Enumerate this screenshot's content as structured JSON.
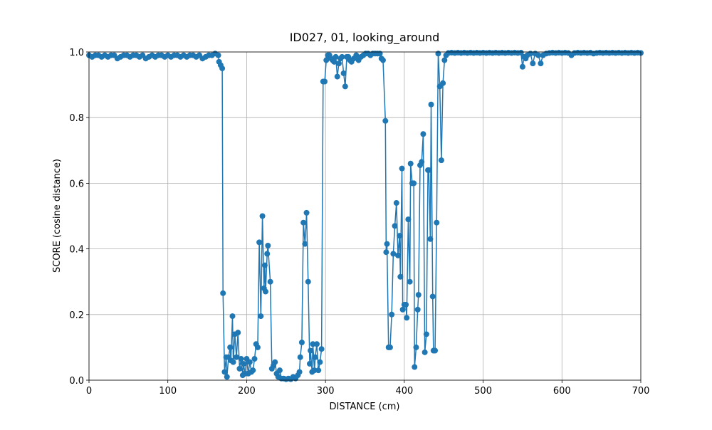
{
  "chart_data": {
    "type": "line",
    "title": "ID027, 01, looking_around",
    "x_label": "DISTANCE (cm)",
    "y_label": "SCORE (cosine distance)",
    "color": "#1f77b4",
    "grid": true,
    "xlim": [
      0,
      700
    ],
    "ylim": [
      0,
      1
    ],
    "xticks": [
      0,
      100,
      200,
      300,
      400,
      500,
      600,
      700
    ],
    "yticks": [
      {
        "value": 0,
        "label": "0.0"
      },
      0.2,
      0.4,
      0.6,
      0.8,
      {
        "value": 1,
        "label": "1.0"
      }
    ],
    "x": [
      0,
      4,
      8,
      12,
      16,
      20,
      24,
      28,
      32,
      36,
      40,
      44,
      48,
      52,
      56,
      60,
      64,
      68,
      72,
      76,
      80,
      84,
      88,
      92,
      96,
      100,
      104,
      108,
      112,
      116,
      120,
      124,
      128,
      132,
      136,
      140,
      144,
      148,
      152,
      156,
      160,
      164,
      165,
      167,
      169,
      170,
      172,
      174,
      175,
      177,
      179,
      180,
      182,
      183,
      185,
      187,
      189,
      191,
      193,
      195,
      196,
      198,
      200,
      202,
      204,
      206,
      208,
      210,
      212,
      214,
      216,
      218,
      220,
      222,
      223,
      224,
      226,
      227,
      230,
      232,
      234,
      236,
      238,
      240,
      242,
      244,
      247,
      250,
      253,
      256,
      259,
      262,
      265,
      267,
      268,
      270,
      272,
      274,
      276,
      278,
      280,
      281,
      283,
      284,
      286,
      287,
      289,
      291,
      293,
      295,
      297,
      299,
      301,
      303,
      305,
      307,
      309,
      311,
      313,
      315,
      317,
      319,
      321,
      323,
      325,
      327,
      329,
      331,
      333,
      336,
      339,
      342,
      345,
      348,
      351,
      354,
      357,
      360,
      363,
      366,
      369,
      371,
      373,
      376,
      377,
      378,
      380,
      382,
      384,
      386,
      388,
      390,
      392,
      394,
      395,
      397,
      398,
      400,
      402,
      403,
      405,
      407,
      408,
      410,
      412,
      413,
      415,
      417,
      418,
      420,
      422,
      424,
      426,
      428,
      430,
      431,
      433,
      434,
      436,
      437,
      439,
      441,
      443,
      445,
      447,
      449,
      451,
      453,
      456,
      460,
      464,
      468,
      472,
      476,
      480,
      484,
      488,
      492,
      496,
      500,
      504,
      508,
      512,
      516,
      520,
      524,
      528,
      532,
      536,
      540,
      544,
      548,
      550,
      552,
      554,
      556,
      560,
      563,
      566,
      570,
      573,
      576,
      580,
      584,
      588,
      592,
      596,
      600,
      604,
      608,
      612,
      616,
      620,
      624,
      628,
      632,
      636,
      640,
      644,
      648,
      652,
      656,
      660,
      664,
      668,
      672,
      676,
      680,
      684,
      688,
      692,
      696,
      700
    ],
    "values": [
      0.99,
      0.985,
      0.99,
      0.99,
      0.985,
      0.99,
      0.985,
      0.99,
      0.99,
      0.98,
      0.985,
      0.99,
      0.99,
      0.985,
      0.99,
      0.99,
      0.985,
      0.99,
      0.98,
      0.985,
      0.99,
      0.985,
      0.99,
      0.99,
      0.985,
      0.99,
      0.985,
      0.99,
      0.99,
      0.985,
      0.99,
      0.985,
      0.99,
      0.99,
      0.985,
      0.99,
      0.98,
      0.985,
      0.99,
      0.99,
      0.995,
      0.99,
      0.97,
      0.96,
      0.95,
      0.265,
      0.025,
      0.07,
      0.01,
      0.07,
      0.1,
      0.06,
      0.195,
      0.055,
      0.14,
      0.07,
      0.145,
      0.035,
      0.065,
      0.015,
      0.05,
      0.02,
      0.065,
      0.02,
      0.055,
      0.025,
      0.03,
      0.065,
      0.11,
      0.1,
      0.42,
      0.195,
      0.5,
      0.28,
      0.35,
      0.27,
      0.385,
      0.41,
      0.3,
      0.035,
      0.045,
      0.055,
      0.02,
      0.01,
      0.03,
      0.005,
      0.005,
      0.003,
      0.005,
      0.003,
      0.01,
      0.005,
      0.015,
      0.025,
      0.07,
      0.115,
      0.48,
      0.415,
      0.51,
      0.3,
      0.05,
      0.09,
      0.025,
      0.11,
      0.03,
      0.07,
      0.11,
      0.03,
      0.055,
      0.095,
      0.91,
      0.91,
      0.975,
      0.99,
      0.99,
      0.98,
      0.975,
      0.97,
      0.985,
      0.925,
      0.965,
      0.98,
      0.985,
      0.935,
      0.895,
      0.985,
      0.985,
      0.975,
      0.97,
      0.98,
      0.99,
      0.975,
      0.985,
      0.99,
      0.995,
      0.995,
      0.99,
      0.995,
      0.995,
      0.995,
      0.995,
      0.98,
      0.975,
      0.79,
      0.39,
      0.415,
      0.1,
      0.1,
      0.2,
      0.385,
      0.47,
      0.54,
      0.38,
      0.44,
      0.315,
      0.645,
      0.215,
      0.23,
      0.23,
      0.19,
      0.49,
      0.3,
      0.66,
      0.6,
      0.6,
      0.04,
      0.1,
      0.215,
      0.26,
      0.655,
      0.665,
      0.75,
      0.085,
      0.14,
      0.64,
      0.64,
      0.43,
      0.84,
      0.255,
      0.09,
      0.09,
      0.48,
      0.995,
      0.895,
      0.67,
      0.905,
      0.975,
      0.99,
      0.997,
      0.998,
      0.997,
      0.998,
      0.997,
      0.998,
      0.997,
      0.998,
      0.997,
      0.998,
      0.997,
      0.998,
      0.997,
      0.998,
      0.997,
      0.998,
      0.997,
      0.998,
      0.997,
      0.998,
      0.997,
      0.998,
      0.997,
      0.998,
      0.955,
      0.985,
      0.98,
      0.99,
      0.995,
      0.965,
      0.995,
      0.99,
      0.965,
      0.99,
      0.995,
      0.997,
      0.998,
      0.997,
      0.998,
      0.997,
      0.998,
      0.997,
      0.99,
      0.997,
      0.998,
      0.997,
      0.998,
      0.997,
      0.998,
      0.995,
      0.997,
      0.998,
      0.997,
      0.998,
      0.997,
      0.998,
      0.997,
      0.998,
      0.997,
      0.998,
      0.997,
      0.998,
      0.997,
      0.998,
      0.997
    ]
  }
}
